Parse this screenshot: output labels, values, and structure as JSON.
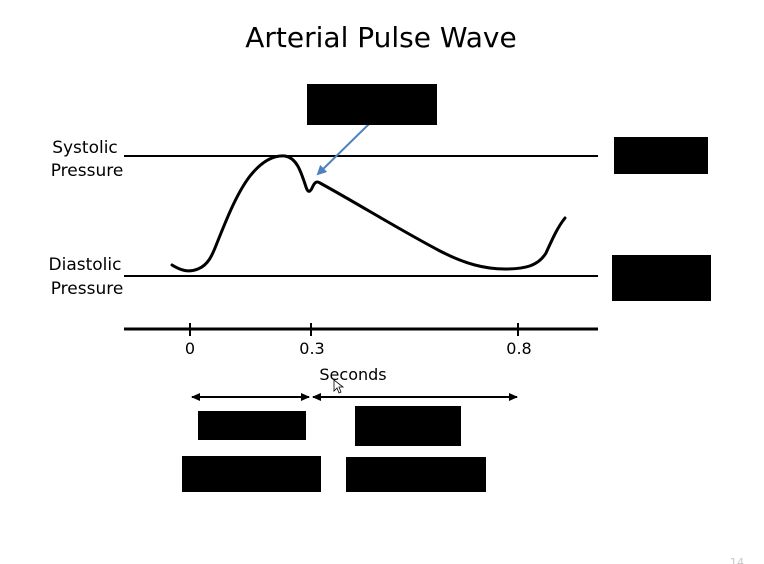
{
  "slide": {
    "title": "Arterial Pulse Wave",
    "systolic_label_line1": "Systolic",
    "systolic_label_line2": "Pressure",
    "diastolic_label_line1": "Diastolic",
    "diastolic_label_line2": "Pressure",
    "x_axis_label": "Seconds",
    "ticks": [
      "0",
      "0.3",
      "0.8"
    ],
    "page_number": "14"
  },
  "colors": {
    "arrow": "#4f81bd",
    "line": "#000000",
    "redaction": "#000000"
  },
  "redactions": [
    "top-label",
    "systolic-value",
    "diastolic-value",
    "phase1-line1",
    "phase1-line2",
    "phase2-line1",
    "phase2-line2"
  ]
}
